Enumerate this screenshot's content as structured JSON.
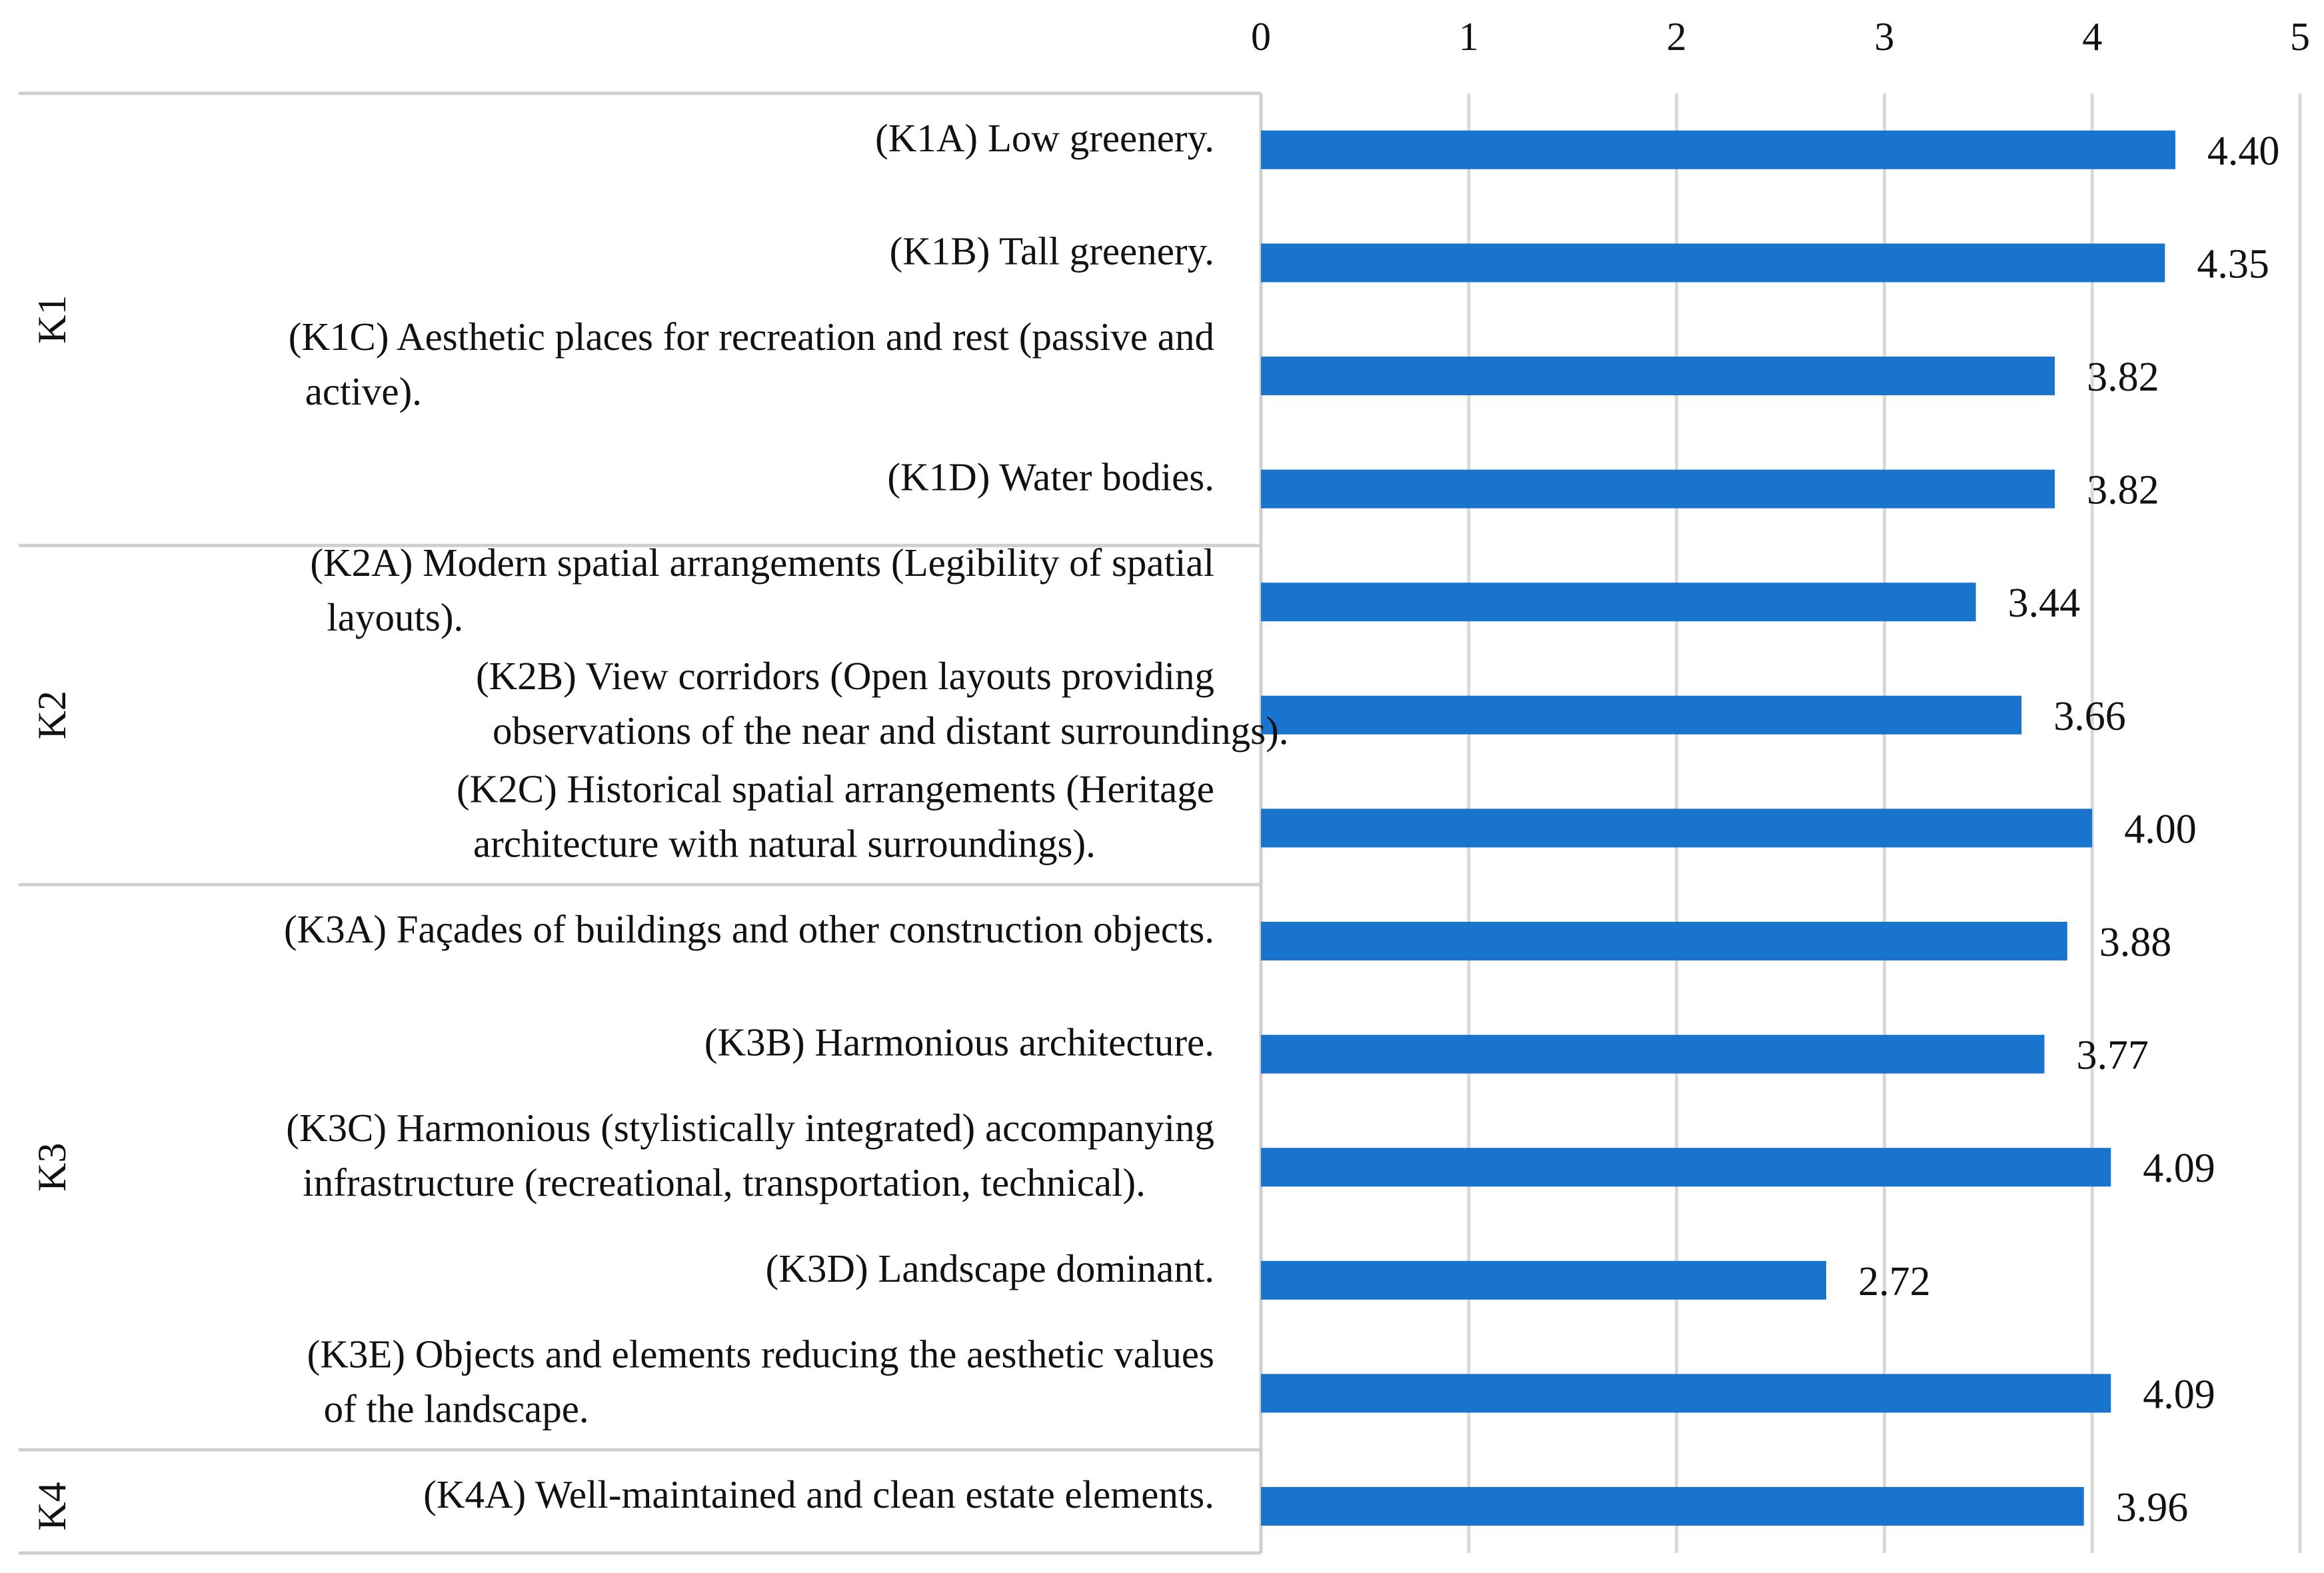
{
  "chart_data": {
    "type": "bar",
    "orientation": "horizontal",
    "title": "",
    "xlabel": "",
    "ylabel": "",
    "xlim": [
      0,
      5
    ],
    "ticks": [
      "0",
      "1",
      "2",
      "3",
      "4",
      "5"
    ],
    "tick_values": [
      0,
      1,
      2,
      3,
      4,
      5
    ],
    "grid": true,
    "axis_position": "top",
    "bar_color": "#1874cd",
    "gridline_color": "#d9d9d9",
    "groups": [
      {
        "name": "K1",
        "items": [
          {
            "lines": [
              "(K1A) Low greenery."
            ],
            "value": 4.4,
            "value_label": "4.40"
          },
          {
            "lines": [
              "(K1B) Tall greenery."
            ],
            "value": 4.35,
            "value_label": "4.35"
          },
          {
            "lines": [
              "(K1C) Aesthetic places for recreation and rest (passive and",
              "active)."
            ],
            "value": 3.82,
            "value_label": "3.82"
          },
          {
            "lines": [
              "(K1D) Water bodies."
            ],
            "value": 3.82,
            "value_label": "3.82"
          }
        ]
      },
      {
        "name": "K2",
        "items": [
          {
            "lines": [
              "(K2A) Modern spatial arrangements (Legibility of spatial",
              "layouts)."
            ],
            "value": 3.44,
            "value_label": "3.44"
          },
          {
            "lines": [
              "(K2B) View corridors (Open layouts providing",
              "observations of the near and distant surroundings)."
            ],
            "value": 3.66,
            "value_label": "3.66"
          },
          {
            "lines": [
              "(K2C) Historical spatial arrangements (Heritage",
              "architecture with natural surroundings)."
            ],
            "value": 4.0,
            "value_label": "4.00"
          }
        ]
      },
      {
        "name": "K3",
        "items": [
          {
            "lines": [
              "(K3A) Façades of buildings and other construction objects."
            ],
            "value": 3.88,
            "value_label": "3.88"
          },
          {
            "lines": [
              "(K3B) Harmonious architecture."
            ],
            "value": 3.77,
            "value_label": "3.77"
          },
          {
            "lines": [
              "(K3C) Harmonious (stylistically integrated) accompanying",
              "infrastructure (recreational, transportation, technical)."
            ],
            "value": 4.09,
            "value_label": "4.09"
          },
          {
            "lines": [
              "(K3D) Landscape dominant."
            ],
            "value": 2.72,
            "value_label": "2.72"
          },
          {
            "lines": [
              "(K3E) Objects and elements reducing the aesthetic values",
              "of the landscape."
            ],
            "value": 4.09,
            "value_label": "4.09"
          }
        ]
      },
      {
        "name": "K4",
        "items": [
          {
            "lines": [
              "(K4A) Well-maintained and clean estate elements."
            ],
            "value": 3.96,
            "value_label": "3.96"
          }
        ]
      }
    ]
  }
}
